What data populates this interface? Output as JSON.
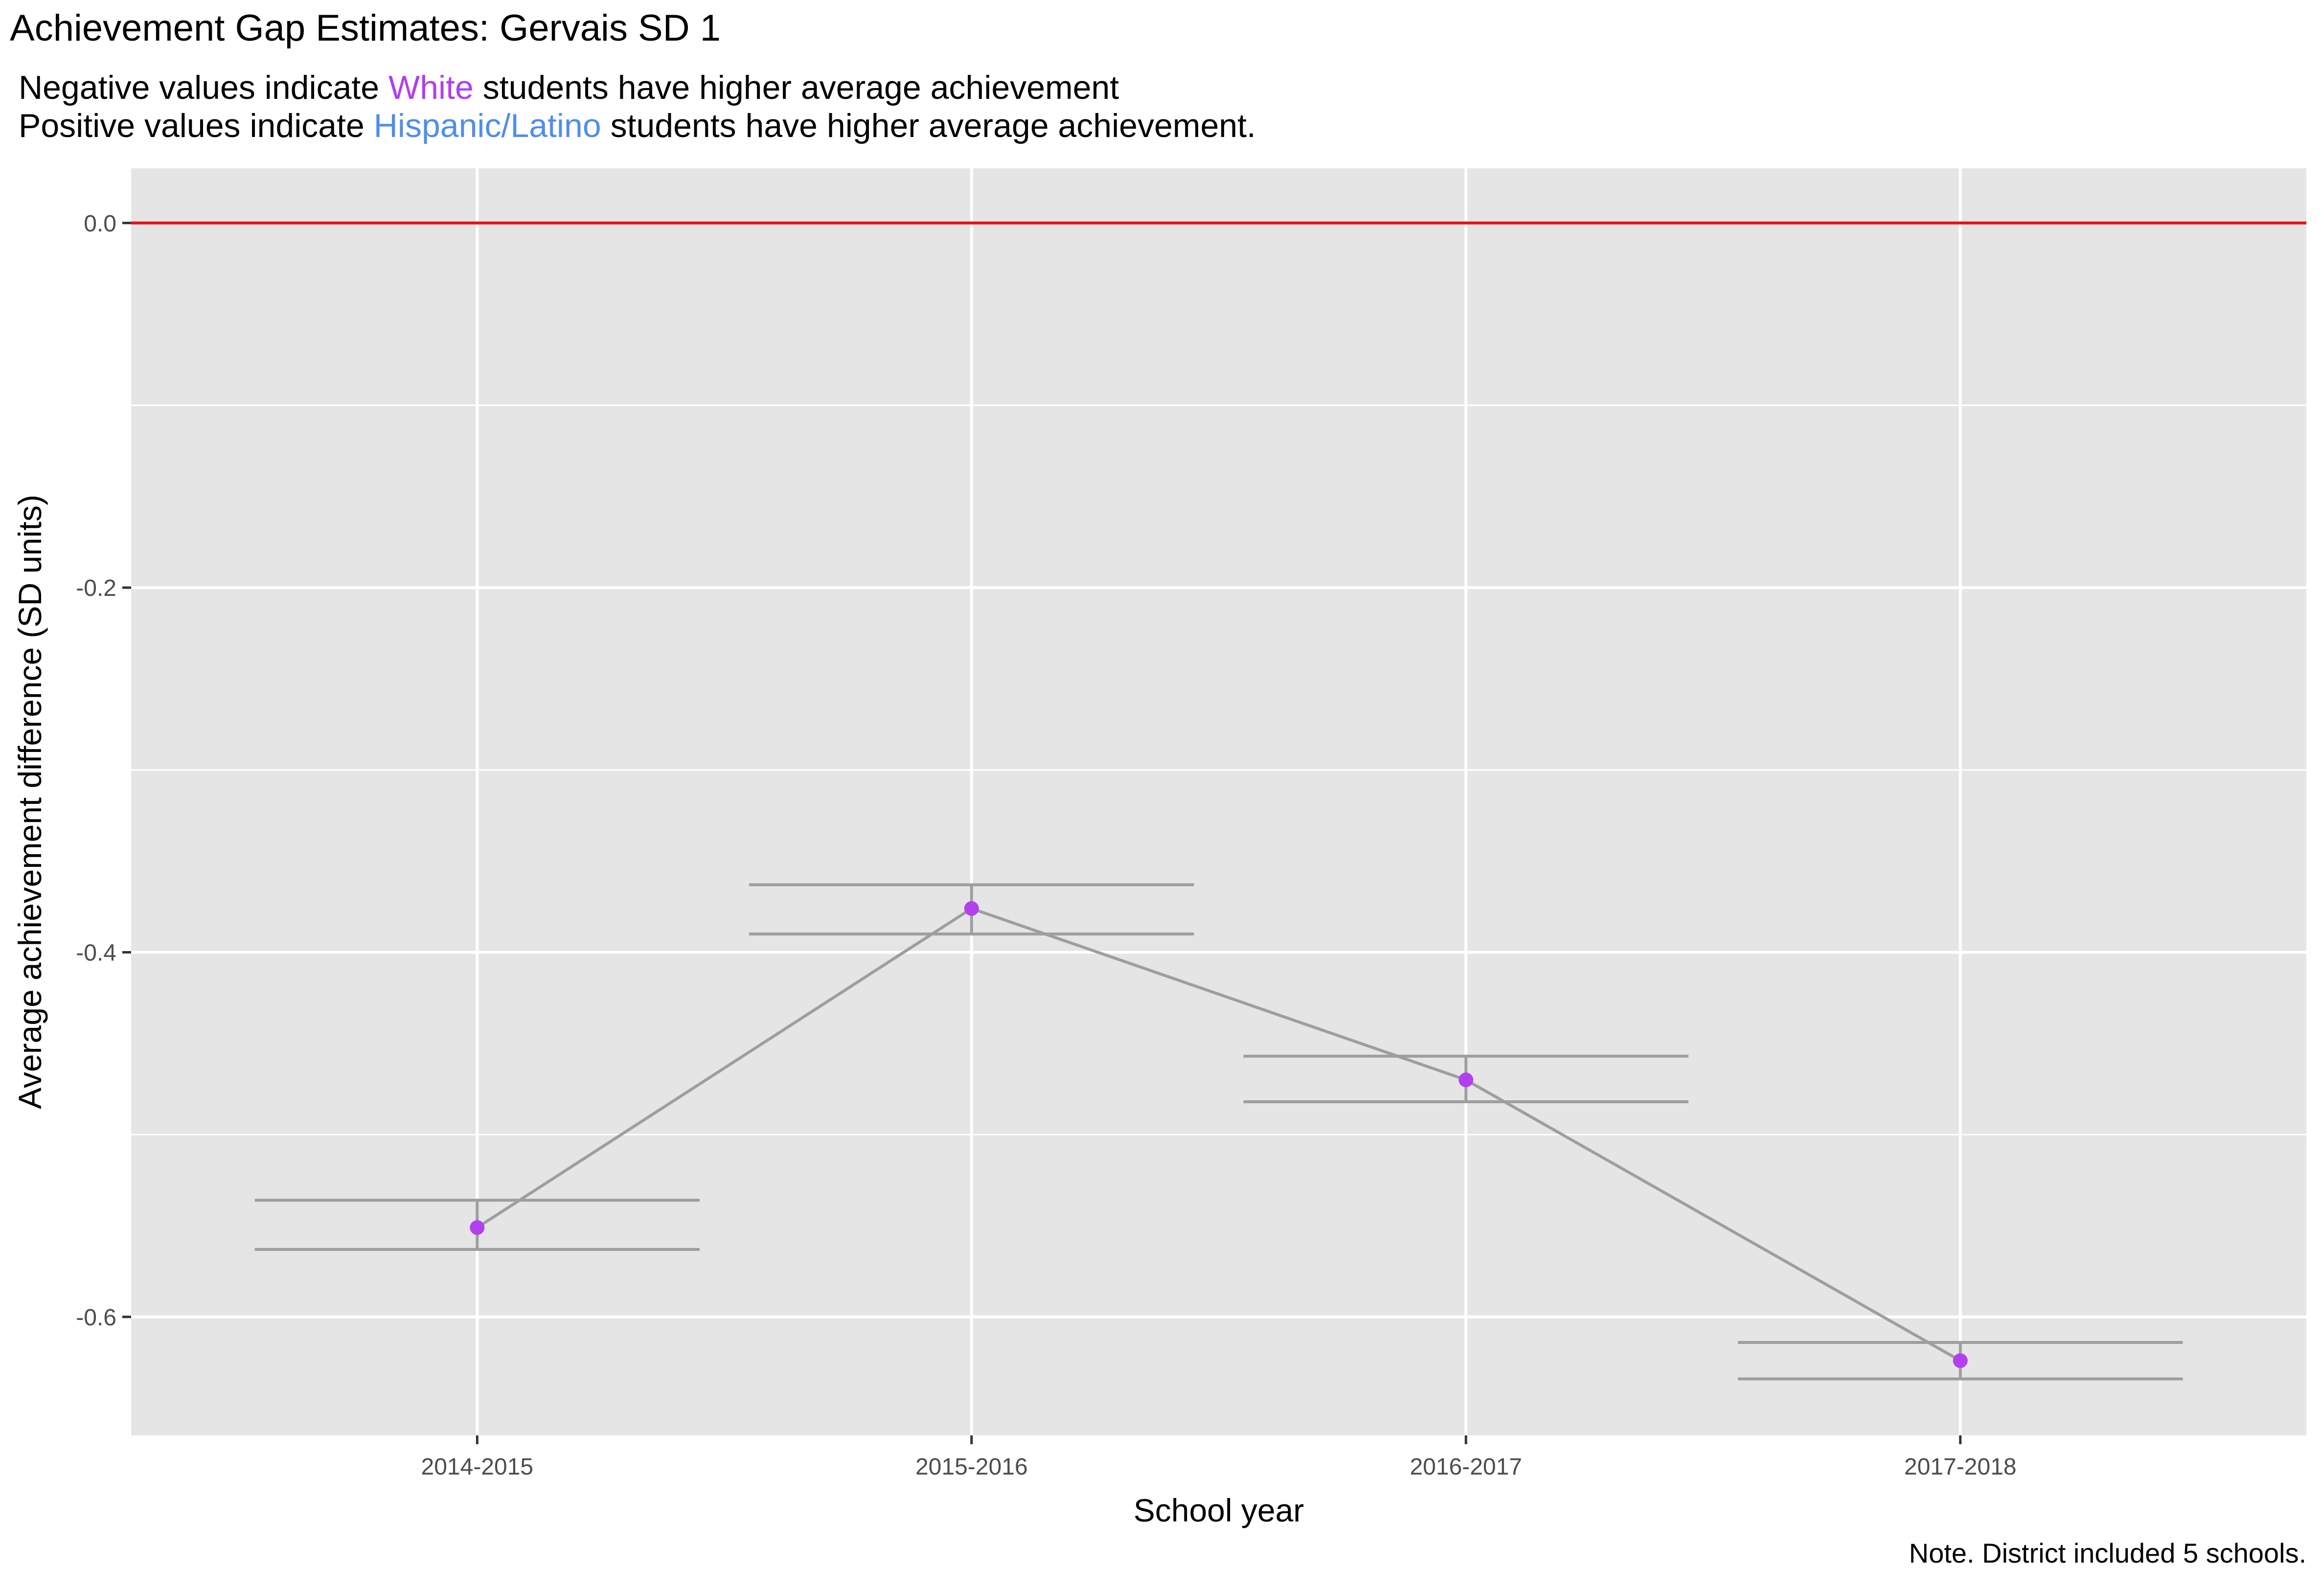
{
  "title": "Achievement Gap Estimates: Gervais SD 1",
  "subtitle": {
    "line1_prefix": "Negative values indicate ",
    "line1_group": "White",
    "line1_suffix": " students have higher average achievement",
    "line2_prefix": "Positive values indicate ",
    "line2_group": "Hispanic/Latino",
    "line2_suffix": " students have higher average achievement."
  },
  "caption": "Note. District included 5 schools.",
  "colors": {
    "white_group": "#B33DEB",
    "hispanic_group": "#4F8EEB",
    "reference_line": "#E8111A",
    "series_line": "#9E9E9E",
    "panel_bg": "#E5E5E5",
    "grid": "#FFFFFF",
    "point": "#B340EE"
  },
  "chart_data": {
    "type": "line",
    "xlabel": "School year",
    "ylabel": "Average achievement difference (SD units)",
    "categories": [
      "2014-2015",
      "2015-2016",
      "2016-2017",
      "2017-2018"
    ],
    "values": [
      -0.551,
      -0.376,
      -0.47,
      -0.624
    ],
    "error_band": {
      "upper": [
        -0.536,
        -0.363,
        -0.457,
        -0.614
      ],
      "lower": [
        -0.563,
        -0.39,
        -0.482,
        -0.634
      ]
    },
    "reference_line_y": 0.0,
    "ylim": [
      -0.665,
      0.03
    ],
    "y_ticks": [
      0.0,
      -0.2,
      -0.4,
      -0.6
    ],
    "y_tick_labels": [
      "0.0",
      "-0.2",
      "-0.4",
      "-0.6"
    ],
    "grid": true,
    "legend": "none"
  }
}
